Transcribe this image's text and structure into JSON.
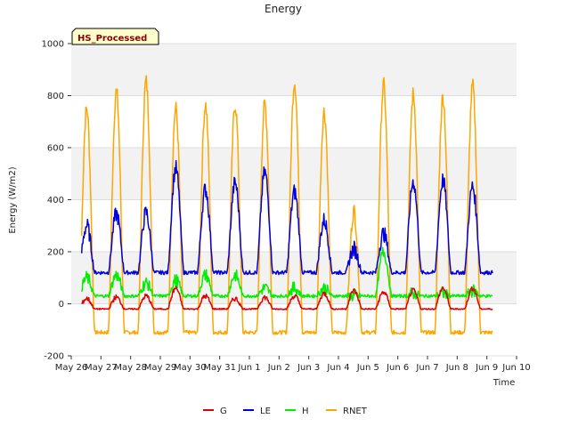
{
  "chart_data": {
    "type": "line",
    "title": "Energy",
    "xlabel": "Time",
    "ylabel": "Energy (W/m2)",
    "badge": "HS_Processed",
    "ylim": [
      -200,
      1000
    ],
    "yticks": [
      -200,
      0,
      200,
      400,
      600,
      800,
      1000
    ],
    "xlim": [
      0,
      15
    ],
    "xtick_labels": [
      "May 26",
      "May 27",
      "May 28",
      "May 29",
      "May 30",
      "May 31",
      "Jun 1",
      "Jun 2",
      "Jun 3",
      "Jun 4",
      "Jun 5",
      "Jun 6",
      "Jun 7",
      "Jun 8",
      "Jun 9",
      "Jun 10"
    ],
    "grid": true,
    "legend_position": "bottom",
    "days_start": 0.35,
    "days_end": 14.2,
    "series": [
      {
        "name": "G",
        "color": "#dd0000",
        "night": -20,
        "peaks": [
          20,
          25,
          30,
          60,
          30,
          20,
          25,
          30,
          40,
          50,
          45,
          50,
          60,
          60
        ]
      },
      {
        "name": "LE",
        "color": "#0000dd",
        "night": 120,
        "peaks": [
          300,
          345,
          350,
          520,
          440,
          465,
          505,
          430,
          320,
          210,
          270,
          470,
          475,
          450
        ]
      },
      {
        "name": "H",
        "color": "#00ee00",
        "night": 30,
        "peaks": [
          100,
          110,
          80,
          90,
          110,
          110,
          60,
          60,
          60,
          30,
          200,
          40,
          40,
          50
        ]
      },
      {
        "name": "RNET",
        "color": "#ffa500",
        "night": -110,
        "peaks": [
          750,
          815,
          855,
          750,
          765,
          765,
          765,
          855,
          740,
          355,
          840,
          805,
          795,
          835
        ]
      }
    ]
  }
}
